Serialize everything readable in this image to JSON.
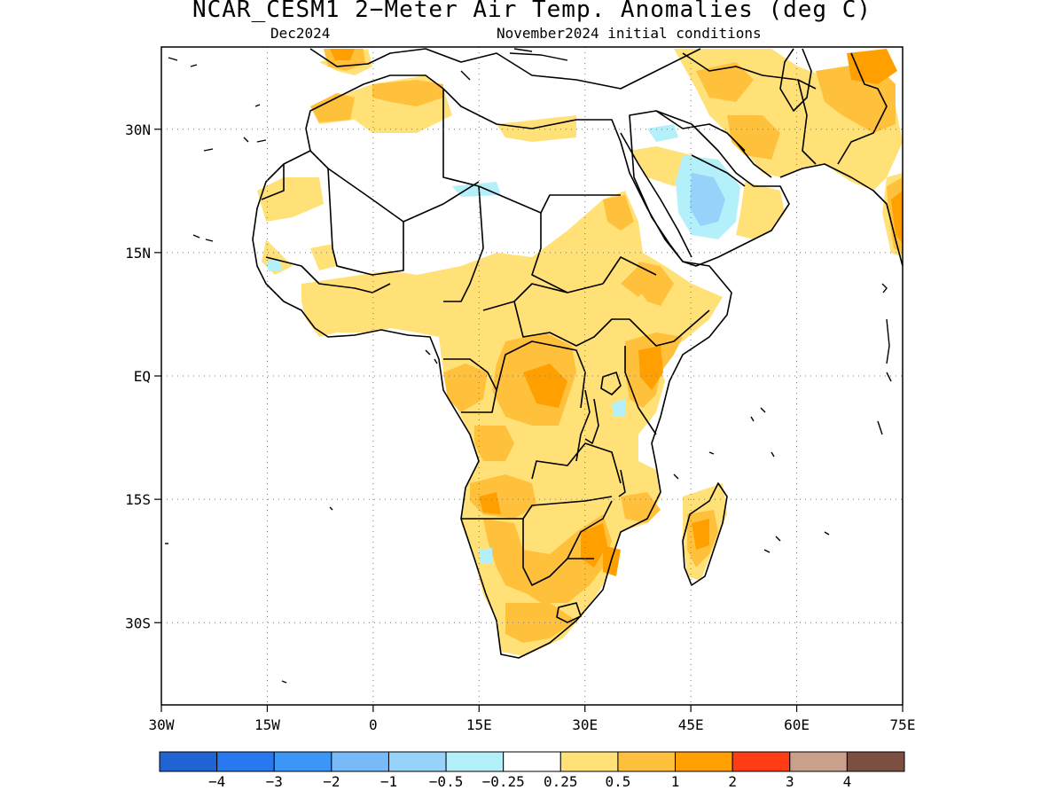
{
  "title": "NCAR_CESM1 2−Meter Air Temp. Anomalies (deg C)",
  "valid_month": "Dec2024",
  "initial_conditions": "November2024 initial conditions",
  "map": {
    "lon_ticks": [
      {
        "value": -30,
        "label": "30W"
      },
      {
        "value": -15,
        "label": "15W"
      },
      {
        "value": 0,
        "label": "0"
      },
      {
        "value": 15,
        "label": "15E"
      },
      {
        "value": 30,
        "label": "30E"
      },
      {
        "value": 45,
        "label": "45E"
      },
      {
        "value": 60,
        "label": "60E"
      },
      {
        "value": 75,
        "label": "75E"
      }
    ],
    "lat_ticks": [
      {
        "value": 30,
        "label": "30N"
      },
      {
        "value": 15,
        "label": "15N"
      },
      {
        "value": 0,
        "label": "EQ"
      },
      {
        "value": -15,
        "label": "15S"
      },
      {
        "value": -30,
        "label": "30S"
      }
    ],
    "lon_range": [
      -30,
      75
    ],
    "lat_range": [
      -40,
      40
    ],
    "grid": "dotted"
  },
  "colorbar": {
    "colors": [
      "#1f64d2",
      "#2878f0",
      "#3c96f5",
      "#78b9fa",
      "#96d2fa",
      "#b4f0fa",
      "#ffffff",
      "#ffe178",
      "#ffc03c",
      "#ffa000",
      "#ff3c14",
      "#c8a08c",
      "#7b5042"
    ],
    "labels": [
      "−4",
      "−3",
      "−2",
      "−1",
      "−0.5",
      "−0.25",
      "0.25",
      "0.5",
      "1",
      "2",
      "3",
      "4"
    ]
  },
  "anomaly_colors": {
    "light_orange": "#ffe178",
    "orange": "#ffc03c",
    "dark_orange": "#ffa000",
    "light_blue": "#96d2fa",
    "lighter_blue": "#b4f0fa"
  }
}
